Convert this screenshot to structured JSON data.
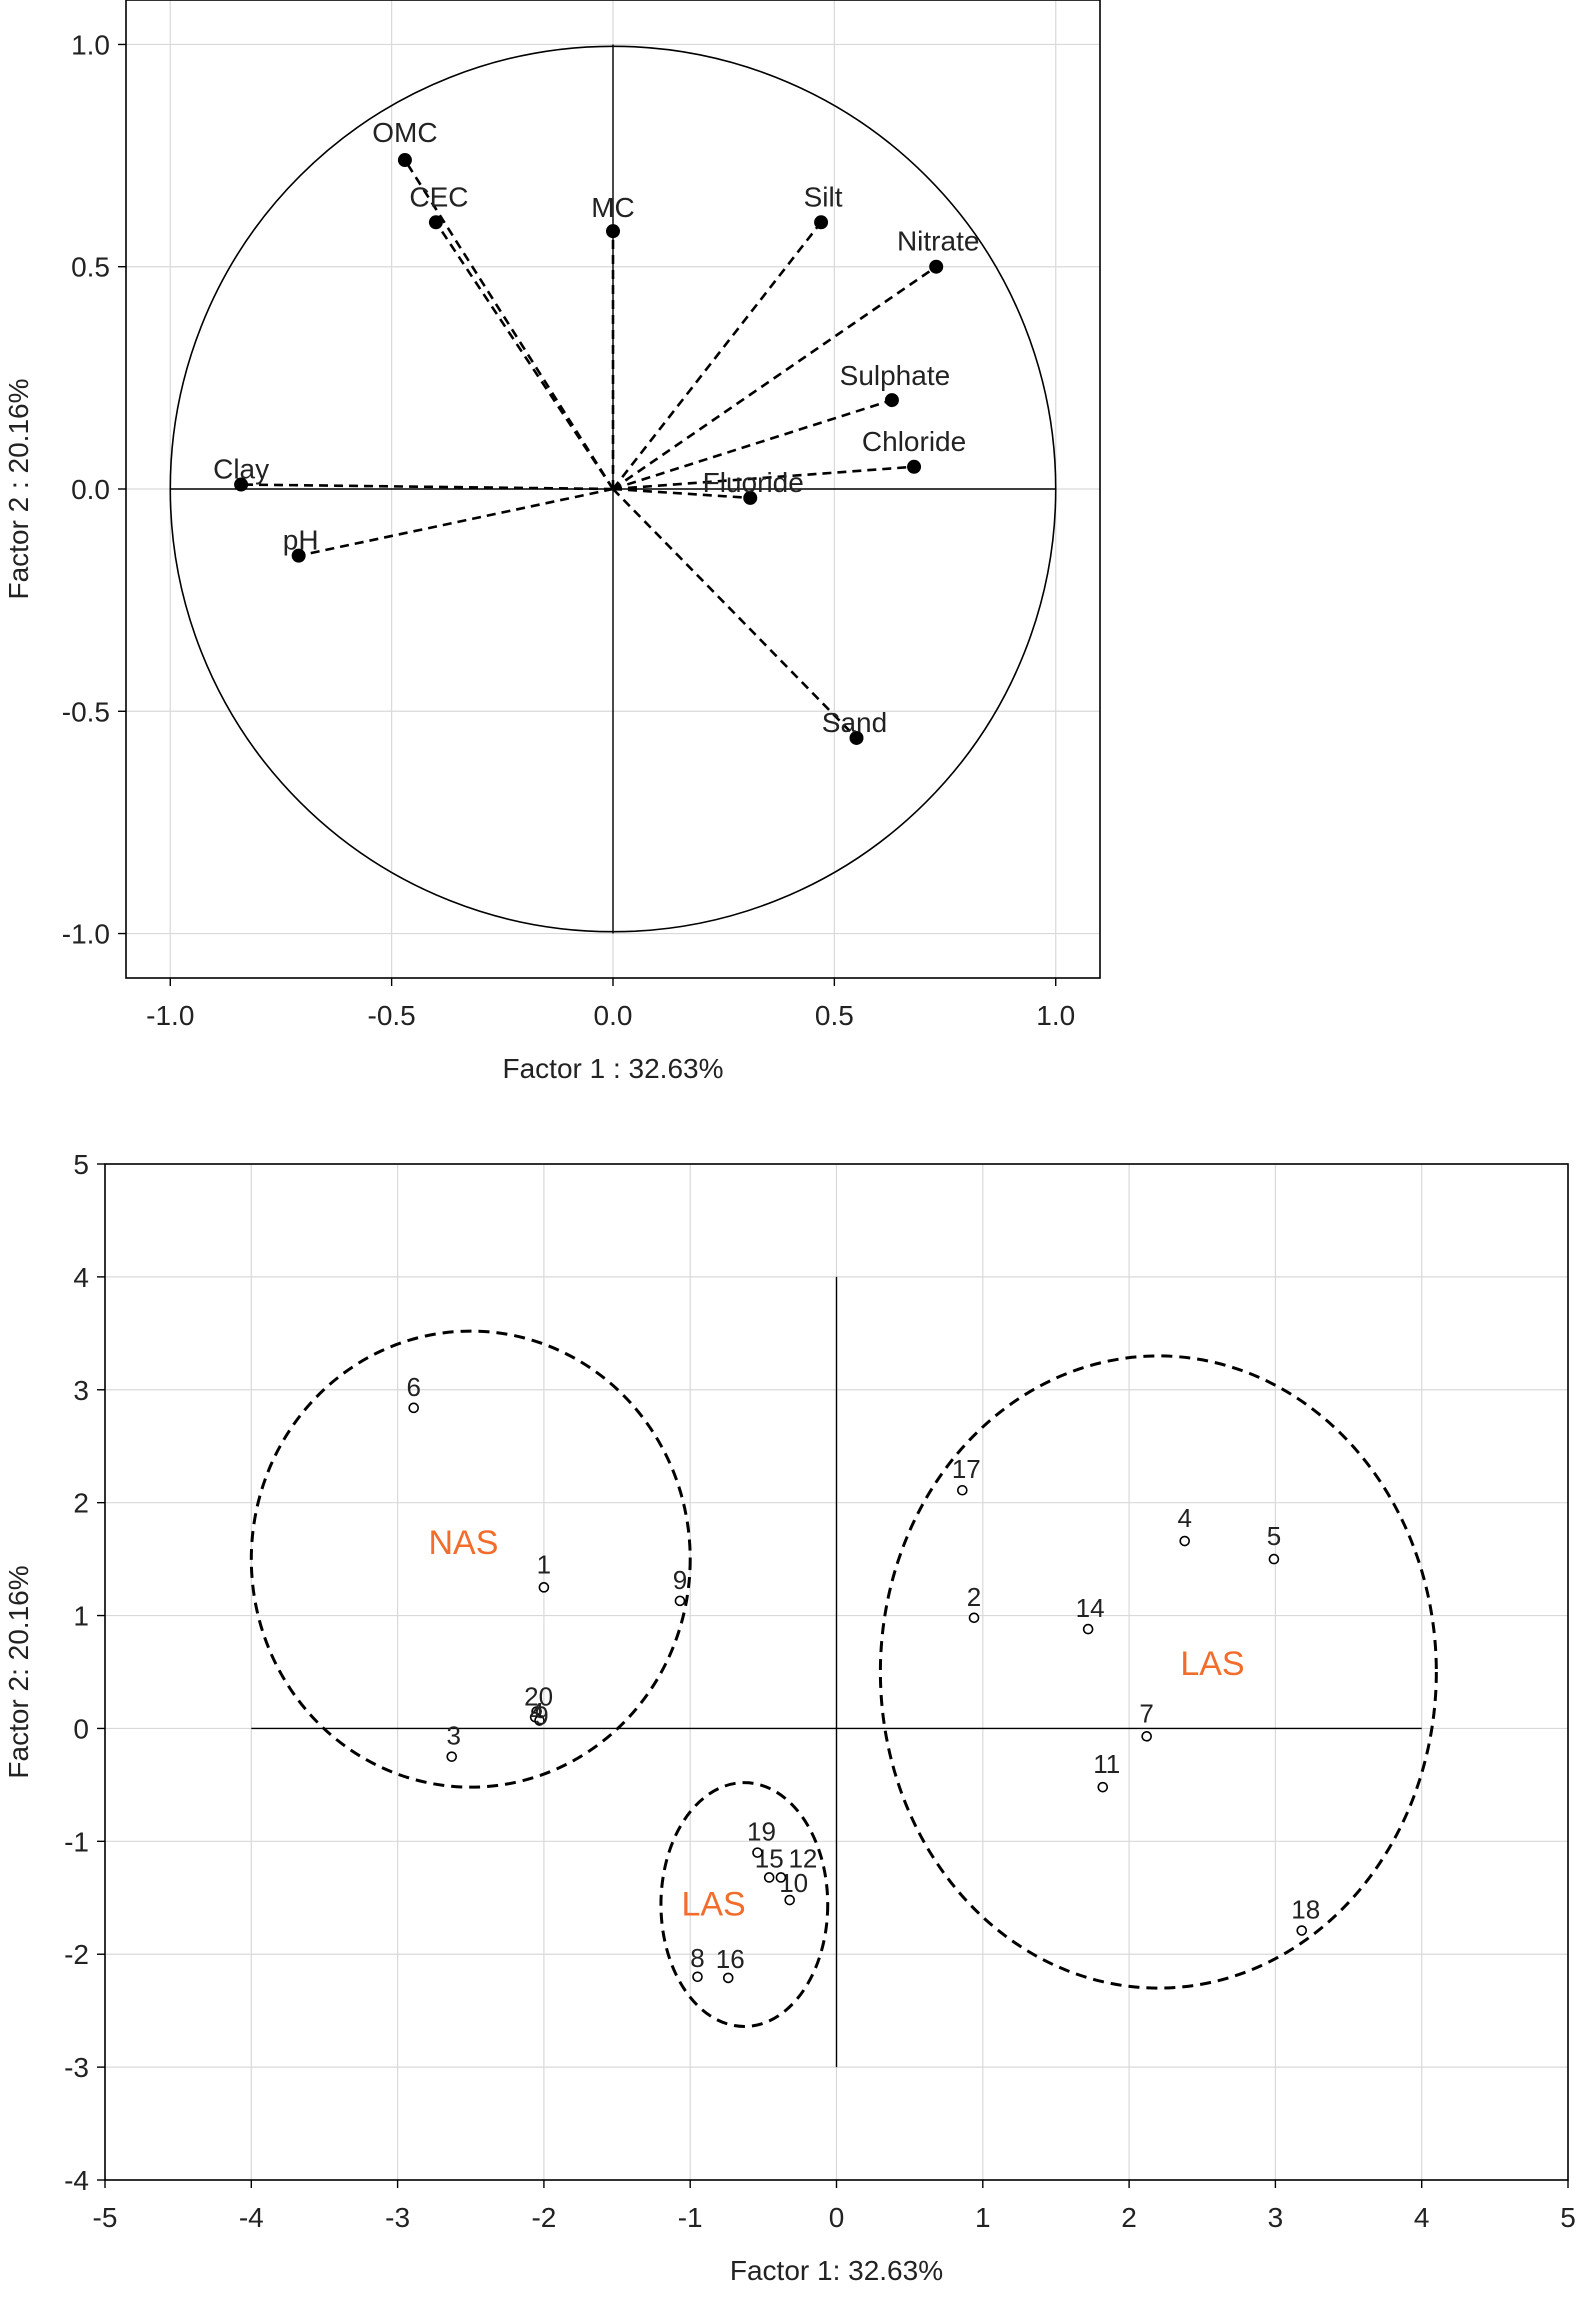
{
  "colors": {
    "ink": "#000000",
    "text": "#222222",
    "grid": "#d9d9d9",
    "group_label": "#f26d2b"
  },
  "chart_data": [
    {
      "type": "scatter",
      "subtype": "loading-plot",
      "xlabel": "Factor 1 : 32.63%",
      "ylabel": "Factor 2 : 20.16%",
      "xlim": [
        -1.1,
        1.1
      ],
      "ylim": [
        -1.1,
        1.1
      ],
      "xticks": [
        "-1.0",
        "-0.5",
        "0.0",
        "0.5",
        "1.0"
      ],
      "yticks": [
        "1.0",
        "0.5",
        "0.0",
        "-0.5",
        "-1.0"
      ],
      "grid": true,
      "unit_circle": true,
      "vectors": [
        {
          "label": "OMC",
          "x": -0.47,
          "y": 0.74
        },
        {
          "label": "CEC",
          "x": -0.4,
          "y": 0.6
        },
        {
          "label": "MC",
          "x": 0.0,
          "y": 0.58
        },
        {
          "label": "Silt",
          "x": 0.47,
          "y": 0.6
        },
        {
          "label": "Nitrate",
          "x": 0.73,
          "y": 0.5
        },
        {
          "label": "Sulphate",
          "x": 0.63,
          "y": 0.2
        },
        {
          "label": "Chloride",
          "x": 0.68,
          "y": 0.05
        },
        {
          "label": "Fluoride",
          "x": 0.31,
          "y": -0.02
        },
        {
          "label": "Clay",
          "x": -0.84,
          "y": 0.01
        },
        {
          "label": "pH",
          "x": -0.71,
          "y": -0.15
        },
        {
          "label": "Sand",
          "x": 0.55,
          "y": -0.56
        }
      ]
    },
    {
      "type": "scatter",
      "subtype": "score-plot",
      "xlabel": "Factor 1: 32.63%",
      "ylabel": "Factor 2: 20.16%",
      "xlim": [
        -5,
        5
      ],
      "ylim": [
        -4,
        5
      ],
      "xticks": [
        "-5",
        "-4",
        "-3",
        "-2",
        "-1",
        "0",
        "1",
        "2",
        "3",
        "4",
        "5"
      ],
      "yticks": [
        "5",
        "4",
        "3",
        "2",
        "1",
        "0",
        "-1",
        "-2",
        "-3",
        "-4"
      ],
      "grid": true,
      "points": [
        {
          "label": "1",
          "x": -2.0,
          "y": 1.25
        },
        {
          "label": "2",
          "x": 0.94,
          "y": 0.98
        },
        {
          "label": "3",
          "x": -2.63,
          "y": -0.25
        },
        {
          "label": "4",
          "x": 2.38,
          "y": 1.66
        },
        {
          "label": "5",
          "x": 2.99,
          "y": 1.5
        },
        {
          "label": "6",
          "x": -2.89,
          "y": 2.84
        },
        {
          "label": "7",
          "x": 2.12,
          "y": -0.07
        },
        {
          "label": "8",
          "x": -0.95,
          "y": -2.2
        },
        {
          "label": "9",
          "x": -1.07,
          "y": 1.13
        },
        {
          "label": "10",
          "x": -0.32,
          "y": -1.52
        },
        {
          "label": "11",
          "x": 1.82,
          "y": -0.52
        },
        {
          "label": "12",
          "x": -0.38,
          "y": -1.32
        },
        {
          "label": "14",
          "x": 1.72,
          "y": 0.88
        },
        {
          "label": "15",
          "x": -0.46,
          "y": -1.32
        },
        {
          "label": "16",
          "x": -0.74,
          "y": -2.21
        },
        {
          "label": "17",
          "x": 0.86,
          "y": 2.11
        },
        {
          "label": "18",
          "x": 3.18,
          "y": -1.79
        },
        {
          "label": "19",
          "x": -0.54,
          "y": -1.1
        },
        {
          "label": "20",
          "x": -2.05,
          "y": 0.15
        },
        {
          "label": "4",
          "x": -2.06,
          "y": 0.1
        },
        {
          "label": "9",
          "x": -2.03,
          "y": 0.07
        }
      ],
      "groups": [
        {
          "label": "NAS",
          "label_x": -2.55,
          "label_y": 1.65,
          "cx": -2.5,
          "cy": 1.5,
          "rx": 1.5,
          "ry": 2.02
        },
        {
          "label": "LAS",
          "label_x": 2.57,
          "label_y": 0.58,
          "cx": 2.2,
          "cy": 0.5,
          "rx": 1.9,
          "ry": 2.8
        },
        {
          "label": "LAS",
          "label_x": -0.84,
          "label_y": -1.55,
          "cx": -0.63,
          "cy": -1.56,
          "rx": 0.57,
          "ry": 1.08
        }
      ]
    }
  ]
}
